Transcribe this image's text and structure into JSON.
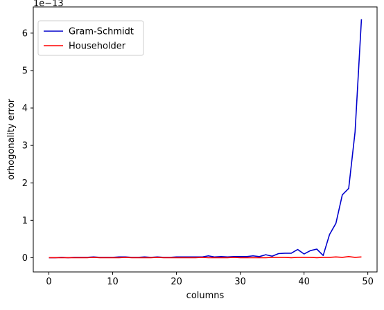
{
  "chart_data": {
    "type": "line",
    "title": "",
    "xlabel": "columns",
    "ylabel": "orhogonality error",
    "y_offset_label": "1e−13",
    "xlim": [
      -2.45,
      51.45
    ],
    "ylim": [
      -0.38,
      6.7
    ],
    "x_ticks": [
      0,
      10,
      20,
      30,
      40,
      50
    ],
    "y_ticks": [
      0,
      1,
      2,
      3,
      4,
      5,
      6
    ],
    "grid": false,
    "legend_position": "top-left",
    "x": [
      0,
      1,
      2,
      3,
      4,
      5,
      6,
      7,
      8,
      9,
      10,
      11,
      12,
      13,
      14,
      15,
      16,
      17,
      18,
      19,
      20,
      21,
      22,
      23,
      24,
      25,
      26,
      27,
      28,
      29,
      30,
      31,
      32,
      33,
      34,
      35,
      36,
      37,
      38,
      39,
      40,
      41,
      42,
      43,
      44,
      45,
      46,
      47,
      48,
      49
    ],
    "series": [
      {
        "name": "Gram-Schmidt",
        "color": "#0000cc",
        "values": [
          0.0,
          0.0,
          0.01,
          0.0,
          0.01,
          0.01,
          0.01,
          0.02,
          0.01,
          0.01,
          0.01,
          0.02,
          0.02,
          0.01,
          0.01,
          0.02,
          0.01,
          0.02,
          0.01,
          0.01,
          0.02,
          0.02,
          0.02,
          0.02,
          0.02,
          0.05,
          0.02,
          0.03,
          0.02,
          0.03,
          0.03,
          0.03,
          0.05,
          0.03,
          0.08,
          0.04,
          0.11,
          0.12,
          0.12,
          0.22,
          0.1,
          0.19,
          0.23,
          0.06,
          0.62,
          0.92,
          1.68,
          1.85,
          3.36,
          6.37
        ]
      },
      {
        "name": "Householder",
        "color": "#ff0000",
        "values": [
          0.0,
          0.0,
          0.0,
          0.0,
          0.0,
          0.0,
          0.0,
          0.01,
          0.0,
          0.0,
          0.0,
          0.0,
          0.01,
          0.0,
          0.0,
          0.0,
          0.0,
          0.01,
          0.0,
          0.0,
          0.0,
          0.0,
          0.0,
          0.0,
          0.01,
          0.0,
          0.0,
          0.0,
          0.0,
          0.01,
          0.0,
          0.0,
          0.0,
          0.0,
          0.0,
          0.01,
          0.01,
          0.01,
          0.0,
          0.01,
          0.01,
          0.01,
          0.0,
          0.01,
          0.01,
          0.02,
          0.01,
          0.03,
          0.01,
          0.02
        ]
      }
    ]
  }
}
